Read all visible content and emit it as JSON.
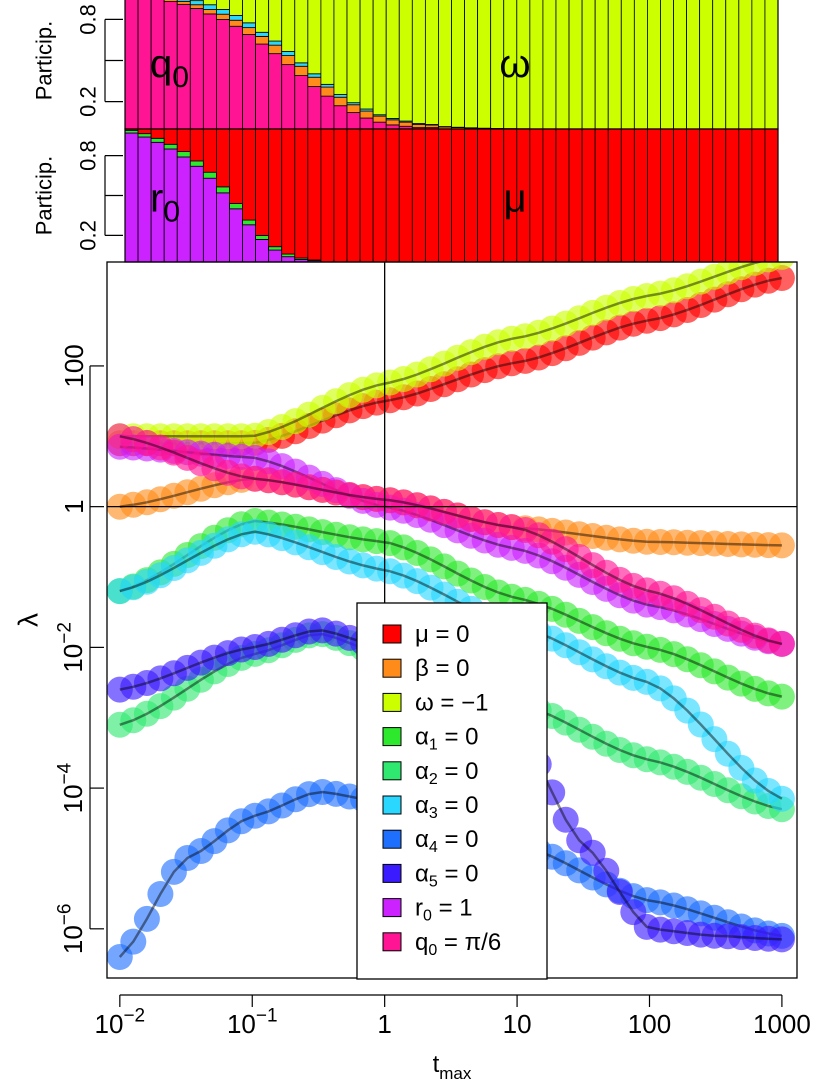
{
  "chart_data": [
    {
      "type": "bar",
      "subtype": "stacked-100",
      "panel": "top participation",
      "ylabel": "Particip.",
      "ytick_labels": [
        "0.2",
        "",
        "0.8"
      ],
      "region_labels": {
        "left": "q0",
        "right": "ω"
      },
      "ylim": [
        0,
        1
      ],
      "n_bars": 50,
      "x_log10_range": [
        -2,
        3
      ],
      "series": [
        {
          "name": "q0",
          "color": "#ff1493",
          "values": [
            0.97,
            0.96,
            0.95,
            0.93,
            0.91,
            0.88,
            0.84,
            0.8,
            0.75,
            0.69,
            0.62,
            0.55,
            0.47,
            0.39,
            0.31,
            0.24,
            0.17,
            0.12,
            0.08,
            0.05,
            0.03,
            0.02,
            0.01,
            0.01,
            0,
            0,
            0,
            0,
            0,
            0,
            0,
            0,
            0,
            0,
            0,
            0,
            0,
            0,
            0,
            0,
            0,
            0,
            0,
            0,
            0,
            0,
            0,
            0,
            0,
            0
          ]
        },
        {
          "name": "β",
          "color": "#ff8c1a",
          "values": [
            0.01,
            0.012,
            0.015,
            0.018,
            0.022,
            0.027,
            0.032,
            0.038,
            0.044,
            0.05,
            0.056,
            0.062,
            0.066,
            0.068,
            0.068,
            0.066,
            0.062,
            0.057,
            0.051,
            0.044,
            0.037,
            0.03,
            0.024,
            0.019,
            0.015,
            0.011,
            0.008,
            0.006,
            0.004,
            0.003,
            0.002,
            0.001,
            0.001,
            0,
            0,
            0,
            0,
            0,
            0,
            0,
            0,
            0,
            0,
            0,
            0,
            0,
            0,
            0,
            0,
            0
          ]
        },
        {
          "name": "α",
          "color": "#29d7ff",
          "values": [
            0.02,
            0.02,
            0.025,
            0.025,
            0.03,
            0.03,
            0.035,
            0.035,
            0.035,
            0.035,
            0.03,
            0.03,
            0.03,
            0.025,
            0.025,
            0.02,
            0.02,
            0.015,
            0.015,
            0.01,
            0.01,
            0.008,
            0.006,
            0.004,
            0.003,
            0.002,
            0.001,
            0,
            0,
            0,
            0,
            0,
            0,
            0,
            0,
            0,
            0,
            0,
            0,
            0,
            0,
            0,
            0,
            0,
            0,
            0,
            0,
            0,
            0,
            0
          ]
        },
        {
          "name": "ω",
          "color": "#ccff00",
          "values": "remainder"
        }
      ]
    },
    {
      "type": "bar",
      "subtype": "stacked-100",
      "panel": "middle participation",
      "ylabel": "Particip.",
      "ytick_labels": [
        "0.2",
        "",
        "0.8"
      ],
      "region_labels": {
        "left": "r0",
        "right": "μ"
      },
      "ylim": [
        0,
        1
      ],
      "n_bars": 50,
      "x_log10_range": [
        -2,
        3
      ],
      "series": [
        {
          "name": "r0",
          "color": "#cc22ff",
          "values": [
            0.97,
            0.94,
            0.9,
            0.85,
            0.79,
            0.72,
            0.63,
            0.52,
            0.4,
            0.28,
            0.17,
            0.09,
            0.04,
            0.02,
            0.01,
            0,
            0,
            0,
            0,
            0,
            0,
            0,
            0,
            0,
            0,
            0,
            0,
            0,
            0,
            0,
            0,
            0,
            0,
            0,
            0,
            0,
            0,
            0,
            0,
            0,
            0,
            0,
            0,
            0,
            0,
            0,
            0,
            0,
            0,
            0
          ]
        },
        {
          "name": "α",
          "color": "#2ee82e",
          "values": [
            0.02,
            0.025,
            0.03,
            0.035,
            0.04,
            0.04,
            0.045,
            0.045,
            0.04,
            0.035,
            0.03,
            0.025,
            0.02,
            0.01,
            0.005,
            0,
            0,
            0,
            0,
            0,
            0,
            0,
            0,
            0,
            0,
            0,
            0,
            0,
            0,
            0,
            0,
            0,
            0,
            0,
            0,
            0,
            0,
            0,
            0,
            0,
            0,
            0,
            0,
            0,
            0,
            0,
            0,
            0,
            0,
            0
          ]
        },
        {
          "name": "μ",
          "color": "#ff0000",
          "values": "remainder"
        }
      ]
    },
    {
      "type": "scatter",
      "panel": "main",
      "xlabel": "t",
      "xlabel_sub": "max",
      "ylabel": "λ",
      "xscale": "log",
      "yscale": "log",
      "xlim": [
        0.008,
        1300
      ],
      "ylim": [
        2e-07,
        3000
      ],
      "x_ticks": [
        {
          "value": 0.01,
          "base": "10",
          "exp": "−2"
        },
        {
          "value": 0.1,
          "base": "10",
          "exp": "−1"
        },
        {
          "value": 1,
          "label": "1"
        },
        {
          "value": 10,
          "label": "10"
        },
        {
          "value": 100,
          "label": "100"
        },
        {
          "value": 1000,
          "label": "1000"
        }
      ],
      "y_ticks": [
        {
          "value": 1e-06,
          "base": "10",
          "exp": "−6"
        },
        {
          "value": 0.0001,
          "base": "10",
          "exp": "−4"
        },
        {
          "value": 0.01,
          "base": "10",
          "exp": "−2"
        },
        {
          "value": 1,
          "label": "1"
        },
        {
          "value": 100,
          "label": "100"
        }
      ],
      "reference_lines": {
        "x": 1,
        "y": 1
      },
      "x_range": [
        0.01,
        1000
      ],
      "n_points": 50,
      "series": [
        {
          "name": "μ = 0",
          "color": "#ff0000",
          "log10_y": [
            [
              -2,
              0.9
            ],
            [
              -1,
              0.9
            ],
            [
              0,
              1.5
            ],
            [
              1,
              2.05
            ],
            [
              2,
              2.65
            ],
            [
              3,
              3.25
            ]
          ]
        },
        {
          "name": "β = 0",
          "color": "#ff8c1a",
          "log10_y": [
            [
              -2,
              0.0
            ],
            [
              -1,
              0.4
            ],
            [
              0,
              0.1
            ],
            [
              1,
              -0.3
            ],
            [
              2,
              -0.5
            ],
            [
              3,
              -0.55
            ]
          ]
        },
        {
          "name": "ω = −1",
          "color": "#ccff00",
          "log10_y": [
            [
              -2,
              1.0
            ],
            [
              -1,
              1.0
            ],
            [
              0,
              1.75
            ],
            [
              1,
              2.4
            ],
            [
              2,
              3.0
            ],
            [
              3,
              3.55
            ]
          ]
        },
        {
          "name": "α1 = 0",
          "color": "#2ee82e",
          "log10_y": [
            [
              -2,
              -1.2
            ],
            [
              -1,
              -0.2
            ],
            [
              0,
              -0.5
            ],
            [
              1,
              -1.3
            ],
            [
              2,
              -2.0
            ],
            [
              3,
              -2.7
            ]
          ]
        },
        {
          "name": "α2 = 0",
          "color": "#2ee870",
          "log10_y": [
            [
              -2,
              -3.1
            ],
            [
              -1,
              -2.1
            ],
            [
              -0.5,
              -1.8
            ],
            [
              0,
              -2.1
            ],
            [
              1,
              -2.8
            ],
            [
              2,
              -3.6
            ],
            [
              3,
              -4.3
            ]
          ]
        },
        {
          "name": "α3 = 0",
          "color": "#29d7ff",
          "log10_y": [
            [
              -2,
              -1.2
            ],
            [
              -1,
              -0.35
            ],
            [
              0,
              -0.9
            ],
            [
              1,
              -1.7
            ],
            [
              2,
              -2.5
            ],
            [
              3,
              -4.15
            ]
          ]
        },
        {
          "name": "α4 = 0",
          "color": "#1f6fff",
          "log10_y": [
            [
              -2,
              -6.4
            ],
            [
              -1.5,
              -5.0
            ],
            [
              -1,
              -4.4
            ],
            [
              -0.5,
              -4.05
            ],
            [
              0,
              -4.2
            ],
            [
              1,
              -4.8
            ],
            [
              2,
              -5.6
            ],
            [
              3,
              -6.1
            ]
          ]
        },
        {
          "name": "α5 = 0",
          "color": "#3a1aff",
          "log10_y": [
            [
              -2,
              -2.6
            ],
            [
              -1,
              -2.0
            ],
            [
              -0.5,
              -1.75
            ],
            [
              0,
              -2.0
            ],
            [
              1,
              -3.2
            ],
            [
              1.5,
              -4.8
            ],
            [
              2,
              -6.0
            ],
            [
              2.5,
              -6.1
            ],
            [
              3,
              -6.15
            ]
          ]
        },
        {
          "name": "r0 = 1",
          "color": "#cc22ff",
          "log10_y": [
            [
              -2,
              0.85
            ],
            [
              -1,
              0.7
            ],
            [
              0,
              0.0
            ],
            [
              1,
              -0.6
            ],
            [
              2,
              -1.4
            ],
            [
              3,
              -1.95
            ]
          ]
        },
        {
          "name": "q0 = π/6",
          "color": "#ff1493",
          "log10_y": [
            [
              -2,
              1.0
            ],
            [
              -1,
              0.4
            ],
            [
              0,
              0.1
            ],
            [
              1,
              -0.3
            ],
            [
              2,
              -1.2
            ],
            [
              3,
              -1.95
            ]
          ]
        }
      ],
      "legend": {
        "placement": "bottom-center",
        "entries": [
          {
            "var": "μ",
            "sub": "",
            "rhs": " = 0",
            "color": "#ff0000"
          },
          {
            "var": "β",
            "sub": "",
            "rhs": " = 0",
            "color": "#ff8c1a"
          },
          {
            "var": "ω",
            "sub": "",
            "rhs": " = −1",
            "color": "#ccff00"
          },
          {
            "var": "α",
            "sub": "1",
            "rhs": " = 0",
            "color": "#2ee82e"
          },
          {
            "var": "α",
            "sub": "2",
            "rhs": " = 0",
            "color": "#2ee870"
          },
          {
            "var": "α",
            "sub": "3",
            "rhs": " = 0",
            "color": "#29d7ff"
          },
          {
            "var": "α",
            "sub": "4",
            "rhs": " = 0",
            "color": "#1f6fff"
          },
          {
            "var": "α",
            "sub": "5",
            "rhs": " = 0",
            "color": "#3a1aff"
          },
          {
            "var": "r",
            "sub": "0",
            "rhs": " = 1",
            "color": "#cc22ff"
          },
          {
            "var": "q",
            "sub": "0",
            "rhs": " = π/6",
            "color": "#ff1493"
          }
        ]
      }
    }
  ]
}
